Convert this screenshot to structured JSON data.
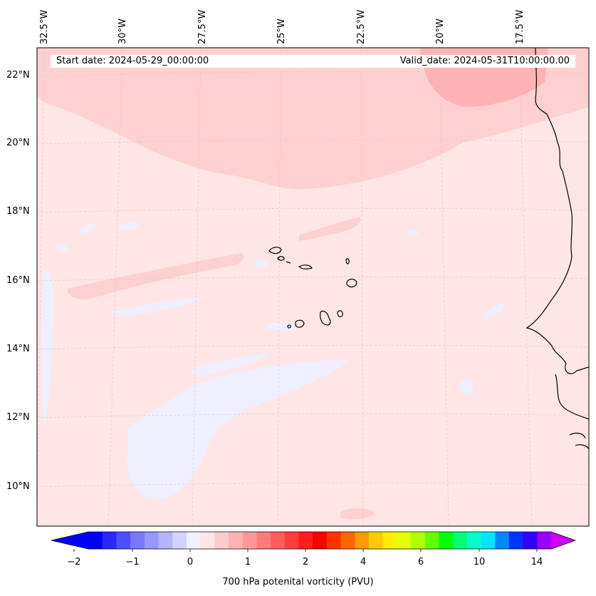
{
  "map": {
    "start_date_text": "Start date: 2024-05-29_00:00:00",
    "valid_date_text": "Valid_date: 2024-05-31T10:00:00.00",
    "lon_labels": [
      "32.5°W",
      "30°W",
      "27.5°W",
      "25°W",
      "22.5°W",
      "20°W",
      "17.5°W"
    ],
    "lat_labels": [
      "22°N",
      "20°N",
      "18°N",
      "16°N",
      "14°N",
      "12°N",
      "10°N"
    ],
    "background_color": "#ffe5e5",
    "region_colors": [
      "#ffd0d0",
      "#ffb3b3",
      "#eeeeff"
    ]
  },
  "colorbar": {
    "title": "700 hPa potenital vorticity (PVU)",
    "tick_labels": [
      "−2",
      "−1",
      "0",
      "1",
      "2",
      "4",
      "6",
      "10",
      "14"
    ],
    "colors": [
      "#0000ff",
      "#2828ff",
      "#4f4fff",
      "#7777ff",
      "#9797ff",
      "#b4b4ff",
      "#d2d2ff",
      "#f0f0ff",
      "#ffe5e5",
      "#ffcccc",
      "#ffb3b3",
      "#ff9999",
      "#ff7a7a",
      "#ff5c5c",
      "#ff3d3d",
      "#ff1e1e",
      "#ff0000",
      "#ff3300",
      "#ff6600",
      "#ff9900",
      "#ffcc00",
      "#ffee00",
      "#e5ff00",
      "#b3ff00",
      "#66ff00",
      "#00ff00",
      "#00ff77",
      "#00ffcc",
      "#00e5ff",
      "#0088ff",
      "#0033ff",
      "#3300ff",
      "#9900ff"
    ],
    "under_color": "#0000ff",
    "over_color": "#cc00ff"
  }
}
